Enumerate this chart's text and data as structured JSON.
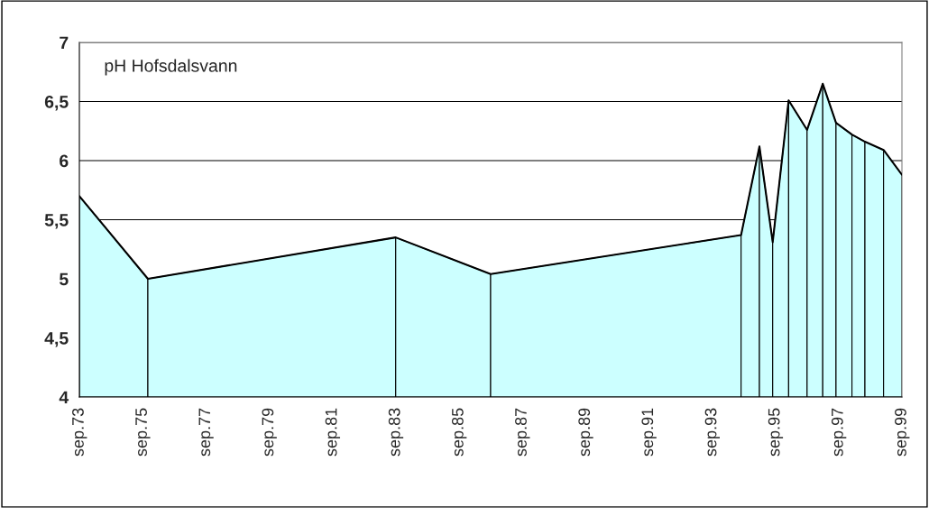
{
  "chart_data": {
    "type": "area",
    "title": "pH Hofsdalsvann",
    "x": [
      "1973-09",
      "1975-11",
      "1983-09",
      "1986-09",
      "1994-08",
      "1995-03",
      "1995-08",
      "1996-02",
      "1996-09",
      "1997-03",
      "1997-08",
      "1998-02",
      "1998-07",
      "1999-02",
      "1999-09"
    ],
    "series": [
      {
        "color": "#ccffff",
        "values": [
          5.7,
          5.0,
          5.35,
          5.04,
          5.37,
          6.12,
          5.31,
          6.51,
          6.26,
          6.65,
          6.32,
          6.22,
          6.16,
          6.09,
          5.88
        ]
      }
    ],
    "xlim": [
      "1973-09",
      "1999-09"
    ],
    "xticks": [
      {
        "value": "1973-09",
        "label": "sep.73"
      },
      {
        "value": "1975-09",
        "label": "sep.75"
      },
      {
        "value": "1977-09",
        "label": "sep.77"
      },
      {
        "value": "1979-09",
        "label": "sep.79"
      },
      {
        "value": "1981-09",
        "label": "sep.81"
      },
      {
        "value": "1983-09",
        "label": "sep.83"
      },
      {
        "value": "1985-09",
        "label": "sep.85"
      },
      {
        "value": "1987-09",
        "label": "sep.87"
      },
      {
        "value": "1989-09",
        "label": "sep.89"
      },
      {
        "value": "1991-09",
        "label": "sep.91"
      },
      {
        "value": "1993-09",
        "label": "sep.93"
      },
      {
        "value": "1995-09",
        "label": "sep.95"
      },
      {
        "value": "1997-09",
        "label": "sep.97"
      },
      {
        "value": "1999-09",
        "label": "sep.99"
      }
    ],
    "ylim": [
      4,
      7
    ],
    "yticks": [
      {
        "value": 4,
        "label": "4"
      },
      {
        "value": 4.5,
        "label": "4,5"
      },
      {
        "value": 5,
        "label": "5"
      },
      {
        "value": 5.5,
        "label": "5,5"
      },
      {
        "value": 6,
        "label": "6"
      },
      {
        "value": 6.5,
        "label": "6,5"
      },
      {
        "value": 7,
        "label": "7"
      }
    ],
    "grid": "y"
  }
}
